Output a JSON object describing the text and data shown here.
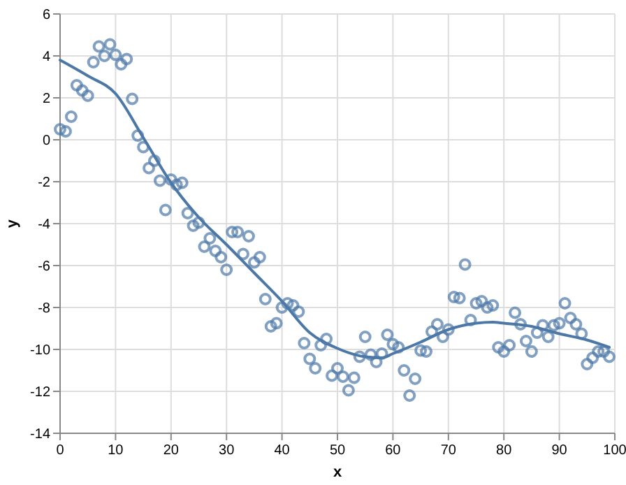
{
  "chart_data": {
    "type": "scatter",
    "xlabel": "x",
    "ylabel": "y",
    "xlim": [
      0,
      100
    ],
    "ylim": [
      -14,
      6
    ],
    "xticks": [
      0,
      10,
      20,
      30,
      40,
      50,
      60,
      70,
      80,
      90,
      100
    ],
    "yticks": [
      -14,
      -12,
      -10,
      -8,
      -6,
      -4,
      -2,
      0,
      2,
      4,
      6
    ],
    "grid": true,
    "marker": "circle",
    "x": [
      0,
      1,
      2,
      3,
      4,
      5,
      6,
      7,
      8,
      9,
      10,
      11,
      12,
      13,
      14,
      15,
      16,
      17,
      18,
      19,
      20,
      21,
      22,
      23,
      24,
      25,
      26,
      27,
      28,
      29,
      30,
      31,
      32,
      33,
      34,
      35,
      36,
      37,
      38,
      39,
      40,
      41,
      42,
      43,
      44,
      45,
      46,
      47,
      48,
      49,
      50,
      51,
      52,
      53,
      54,
      55,
      56,
      57,
      58,
      59,
      60,
      61,
      62,
      63,
      64,
      65,
      66,
      67,
      68,
      69,
      70,
      71,
      72,
      73,
      74,
      75,
      76,
      77,
      78,
      79,
      80,
      81,
      82,
      83,
      84,
      85,
      86,
      87,
      88,
      89,
      90,
      91,
      92,
      93,
      94,
      95,
      96,
      97,
      98,
      99
    ],
    "series": [
      {
        "color": "#4c78a8",
        "values": [
          0.5,
          0.4,
          1.1,
          2.6,
          2.35,
          2.1,
          3.7,
          4.45,
          4.0,
          4.55,
          4.05,
          3.6,
          3.85,
          1.95,
          0.2,
          -0.35,
          -1.35,
          -1.0,
          -1.95,
          -3.35,
          -1.9,
          -2.15,
          -2.05,
          -3.5,
          -4.1,
          -3.95,
          -5.1,
          -4.7,
          -5.3,
          -5.6,
          -6.2,
          -4.4,
          -4.4,
          -5.45,
          -4.6,
          -5.85,
          -5.6,
          -7.6,
          -8.9,
          -8.75,
          -8.0,
          -7.8,
          -7.9,
          -8.2,
          -9.7,
          -10.45,
          -10.9,
          -9.8,
          -9.5,
          -11.25,
          -10.9,
          -11.3,
          -11.95,
          -11.35,
          -10.35,
          -9.4,
          -10.25,
          -10.6,
          -10.2,
          -9.3,
          -9.75,
          -9.9,
          -11.0,
          -12.2,
          -11.4,
          -10.05,
          -10.1,
          -9.15,
          -8.8,
          -9.4,
          -9.05,
          -7.5,
          -7.55,
          -5.95,
          -8.6,
          -7.8,
          -7.7,
          -8.0,
          -7.9,
          -9.9,
          -10.1,
          -9.8,
          -8.25,
          -8.8,
          -9.6,
          -10.1,
          -9.2,
          -8.85,
          -9.4,
          -8.85,
          -8.75,
          -7.8,
          -8.5,
          -8.8,
          -9.25,
          -10.7,
          -10.4,
          -10.1,
          -10.1,
          -10.35
        ]
      },
      {
        "type": "line",
        "color": "#4c78a8",
        "marker": "none",
        "line_style": "solid",
        "x": [
          0,
          5,
          10,
          15,
          20,
          25,
          30,
          35,
          40,
          45,
          50,
          55,
          58,
          60,
          65,
          70,
          75,
          78,
          80,
          85,
          90,
          95,
          99
        ],
        "values": [
          3.8,
          3.05,
          2.2,
          0.1,
          -2.05,
          -3.7,
          -5.0,
          -6.35,
          -7.7,
          -9.2,
          -9.95,
          -10.35,
          -10.4,
          -10.2,
          -9.65,
          -9.05,
          -8.75,
          -8.7,
          -8.75,
          -8.9,
          -9.25,
          -9.55,
          -9.9
        ]
      }
    ]
  }
}
